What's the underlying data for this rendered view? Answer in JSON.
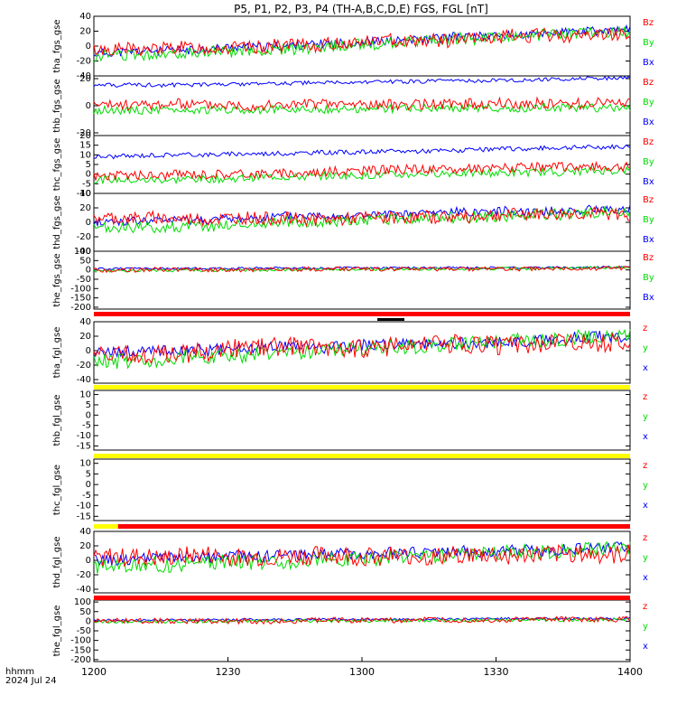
{
  "title": "P5, P1, P2, P3, P4 (TH-A,B,C,D,E) FGS, FGL [nT]",
  "time_label_line1": "hhmm",
  "time_label_line2": "2024 Jul 24",
  "x_ticks": [
    "1200",
    "1230",
    "1300",
    "1330",
    "1400"
  ],
  "colors": {
    "x": "#0000ff",
    "y": "#00dd00",
    "z": "#ff0000",
    "bar_red": "#ff0000",
    "bar_yellow": "#ffff00",
    "bar_black": "#000000"
  },
  "chart_data": [
    {
      "type": "line",
      "ylabel": "tha_fgs_gse",
      "yticks": [
        "40",
        "20",
        "0",
        "-20",
        "-40"
      ],
      "ylim": [
        -40,
        40
      ],
      "legend": [
        "Bz",
        "By",
        "Bx"
      ],
      "series": [
        {
          "name": "Bx",
          "start": -10,
          "end": 22,
          "noise": 6,
          "seed": 11
        },
        {
          "name": "By",
          "start": -15,
          "end": 20,
          "noise": 8,
          "seed": 12
        },
        {
          "name": "Bz",
          "start": -5,
          "end": 15,
          "noise": 9,
          "seed": 13
        }
      ]
    },
    {
      "type": "line",
      "ylabel": "thb_fgs_gse",
      "yticks": [
        "20",
        "0",
        "-20"
      ],
      "ylim": [
        -22,
        22
      ],
      "legend": [
        "Bz",
        "By",
        "Bx"
      ],
      "series": [
        {
          "name": "Bx",
          "start": 15,
          "end": 20,
          "noise": 1.5,
          "seed": 21
        },
        {
          "name": "By",
          "start": -3,
          "end": -2,
          "noise": 3,
          "seed": 22
        },
        {
          "name": "Bz",
          "start": 0,
          "end": 3,
          "noise": 4,
          "seed": 23
        }
      ]
    },
    {
      "type": "line",
      "ylabel": "thc_fgs_gse",
      "yticks": [
        "20",
        "15",
        "10",
        "5",
        "0",
        "-5",
        "-10"
      ],
      "ylim": [
        -10,
        20
      ],
      "legend": [
        "Bz",
        "By",
        "Bx"
      ],
      "series": [
        {
          "name": "Bx",
          "start": 9,
          "end": 14,
          "noise": 1.2,
          "seed": 31
        },
        {
          "name": "By",
          "start": -3,
          "end": 2,
          "noise": 2,
          "seed": 32
        },
        {
          "name": "Bz",
          "start": -1,
          "end": 4,
          "noise": 2.5,
          "seed": 33
        }
      ]
    },
    {
      "type": "line",
      "ylabel": "thd_fgs_gse",
      "yticks": [
        "40",
        "20",
        "0",
        "-20",
        "-40"
      ],
      "ylim": [
        -40,
        40
      ],
      "legend": [
        "Bz",
        "By",
        "Bx"
      ],
      "series": [
        {
          "name": "Bx",
          "start": 0,
          "end": 18,
          "noise": 6,
          "seed": 41
        },
        {
          "name": "By",
          "start": -10,
          "end": 15,
          "noise": 8,
          "seed": 42
        },
        {
          "name": "Bz",
          "start": 5,
          "end": 10,
          "noise": 9,
          "seed": 43
        }
      ]
    },
    {
      "type": "line",
      "ylabel": "the_fgs_gse",
      "yticks": [
        "100",
        "50",
        "0",
        "-50",
        "-100",
        "-150",
        "-200"
      ],
      "ylim": [
        -210,
        100
      ],
      "legend": [
        "Bz",
        "By",
        "Bx"
      ],
      "series": [
        {
          "name": "Bx",
          "start": 5,
          "end": 15,
          "noise": 6,
          "seed": 51
        },
        {
          "name": "By",
          "start": -5,
          "end": 10,
          "noise": 8,
          "seed": 52
        },
        {
          "name": "Bz",
          "start": 0,
          "end": 10,
          "noise": 12,
          "seed": 53
        }
      ]
    },
    {
      "type": "line",
      "ylabel": "tha_fgl_gse",
      "yticks": [
        "40",
        "20",
        "0",
        "-20",
        "-40"
      ],
      "ylim": [
        -45,
        40
      ],
      "legend": [
        "z",
        "y",
        "x"
      ],
      "series": [
        {
          "name": "x",
          "start": -5,
          "end": 20,
          "noise": 8,
          "seed": 61
        },
        {
          "name": "y",
          "start": -15,
          "end": 18,
          "noise": 10,
          "seed": 62
        },
        {
          "name": "z",
          "start": -5,
          "end": 15,
          "noise": 13,
          "seed": 63
        }
      ]
    },
    {
      "type": "line",
      "ylabel": "thb_fgl_gse",
      "yticks": [
        "10",
        "5",
        "0",
        "-5",
        "-10",
        "-15"
      ],
      "ylim": [
        -17,
        12
      ],
      "legend": [
        "z",
        "y",
        "x"
      ],
      "series": []
    },
    {
      "type": "line",
      "ylabel": "thc_fgl_gse",
      "yticks": [
        "10",
        "5",
        "0",
        "-5",
        "-10",
        "-15"
      ],
      "ylim": [
        -17,
        12
      ],
      "legend": [
        "z",
        "y",
        "x"
      ],
      "series": []
    },
    {
      "type": "line",
      "ylabel": "thd_fgl_gse",
      "yticks": [
        "40",
        "20",
        "0",
        "-20",
        "-40"
      ],
      "ylim": [
        -45,
        40
      ],
      "legend": [
        "z",
        "y",
        "x"
      ],
      "series": [
        {
          "name": "x",
          "start": 0,
          "end": 18,
          "noise": 8,
          "seed": 91
        },
        {
          "name": "y",
          "start": -10,
          "end": 15,
          "noise": 10,
          "seed": 92
        },
        {
          "name": "z",
          "start": 5,
          "end": 10,
          "noise": 13,
          "seed": 93
        }
      ]
    },
    {
      "type": "line",
      "ylabel": "the_fgl_gse",
      "yticks": [
        "100",
        "50",
        "0",
        "-50",
        "-100",
        "-150",
        "-200"
      ],
      "ylim": [
        -210,
        110
      ],
      "legend": [
        "z",
        "y",
        "x"
      ],
      "series": [
        {
          "name": "x",
          "start": 5,
          "end": 15,
          "noise": 6,
          "seed": 101
        },
        {
          "name": "y",
          "start": -5,
          "end": 10,
          "noise": 8,
          "seed": 102
        },
        {
          "name": "z",
          "start": 0,
          "end": 10,
          "noise": 14,
          "seed": 103
        }
      ]
    }
  ]
}
